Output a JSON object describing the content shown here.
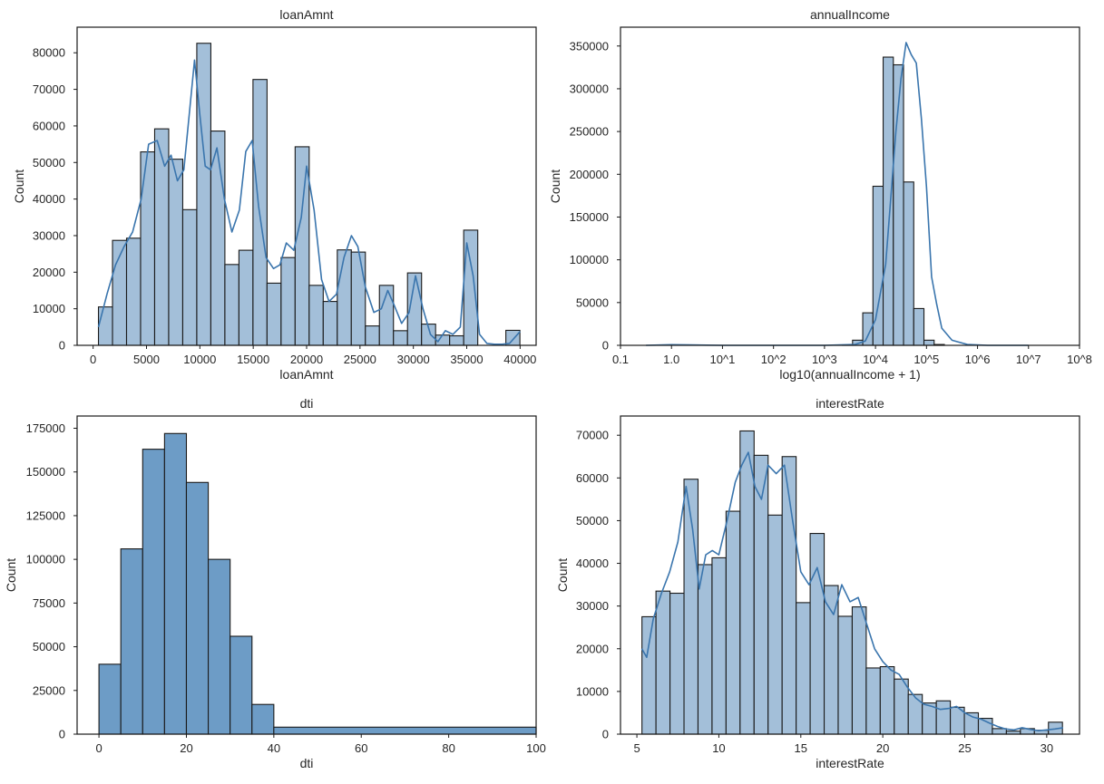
{
  "figure": {
    "style": {
      "bar_color_light": "#a3bfd9",
      "bar_color_dark": "#6d9cc6",
      "kde_color": "#3a75ad",
      "edge_color": "#1a1a1a"
    }
  },
  "chart_data": [
    {
      "type": "bar",
      "subtype": "histogram",
      "title": "loanAmnt",
      "xlabel": "loanAmnt",
      "ylabel": "Count",
      "xlim": [
        -1500,
        41500
      ],
      "ylim": [
        0,
        87000
      ],
      "xticks": [
        0,
        5000,
        10000,
        15000,
        20000,
        25000,
        30000,
        35000,
        40000
      ],
      "xtick_labels": [
        "0",
        "5000",
        "10000",
        "15000",
        "20000",
        "25000",
        "30000",
        "35000",
        "40000"
      ],
      "yticks": [
        0,
        10000,
        20000,
        30000,
        40000,
        50000,
        60000,
        70000,
        80000
      ],
      "ytick_labels": [
        "0",
        "10000",
        "20000",
        "30000",
        "40000",
        "50000",
        "60000",
        "70000",
        "80000"
      ],
      "bin_start": 500,
      "bin_width": 1316,
      "values": [
        10500,
        28700,
        29300,
        52900,
        59200,
        50900,
        37100,
        82600,
        58600,
        22100,
        26000,
        72700,
        17000,
        24000,
        54300,
        16400,
        12000,
        26100,
        25500,
        5300,
        16400,
        4000,
        19800,
        5800,
        2800,
        2600,
        31500,
        0,
        0,
        4100
      ],
      "kde": {
        "x": [
          500,
          1300,
          2100,
          2900,
          3700,
          4500,
          5200,
          6000,
          6700,
          7300,
          7900,
          8500,
          9000,
          9500,
          10000,
          10500,
          11000,
          11600,
          12300,
          13000,
          13700,
          14300,
          14900,
          15500,
          16200,
          16900,
          17500,
          18100,
          18800,
          19500,
          20000,
          20700,
          21400,
          22100,
          22800,
          23500,
          24200,
          24800,
          25500,
          26300,
          27000,
          27600,
          28200,
          28900,
          29600,
          30200,
          30900,
          31600,
          32300,
          33000,
          33700,
          34400,
          35000,
          35600,
          36200,
          36900,
          37600,
          38300,
          39000,
          40000
        ],
        "y": [
          5000,
          14000,
          22000,
          27000,
          31000,
          40000,
          55000,
          56000,
          49000,
          52000,
          45000,
          48000,
          63000,
          78000,
          63000,
          49000,
          48000,
          54000,
          40000,
          31000,
          37000,
          53000,
          56000,
          38000,
          24000,
          21000,
          22000,
          28000,
          26000,
          35000,
          49000,
          37000,
          18000,
          12000,
          14000,
          24000,
          30000,
          27000,
          16000,
          9000,
          10000,
          15000,
          11000,
          6000,
          9000,
          19000,
          10000,
          3000,
          1000,
          4000,
          3000,
          5000,
          28000,
          19000,
          3000,
          500,
          300,
          300,
          500,
          3800
        ]
      }
    },
    {
      "type": "bar",
      "subtype": "histogram",
      "title": "annualIncome",
      "xlabel": "log10(annualIncome + 1)",
      "ylabel": "Count",
      "xlim": [
        -1,
        8
      ],
      "ylim": [
        0,
        372000
      ],
      "xticks": [
        -1,
        0,
        1,
        2,
        3,
        4,
        5,
        6,
        7,
        8
      ],
      "xtick_labels": [
        "0.1",
        "1.0",
        "10^1",
        "10^2",
        "10^3",
        "10^4",
        "10^5",
        "10^6",
        "10^7",
        "10^8"
      ],
      "yticks": [
        0,
        50000,
        100000,
        150000,
        200000,
        250000,
        300000,
        350000
      ],
      "ytick_labels": [
        "0",
        "50000",
        "100000",
        "150000",
        "200000",
        "250000",
        "300000",
        "350000"
      ],
      "bin_start": 3.35,
      "bin_width": 0.2,
      "values": [
        500,
        6000,
        38000,
        186000,
        337000,
        328000,
        191000,
        43000,
        6000,
        1000
      ],
      "kde": {
        "x": [
          -0.5,
          0.0,
          1.0,
          2.0,
          3.0,
          3.6,
          3.8,
          4.0,
          4.2,
          4.4,
          4.5,
          4.6,
          4.7,
          4.8,
          4.9,
          5.0,
          5.1,
          5.2,
          5.3,
          5.5,
          5.8,
          6.2,
          7.0
        ],
        "y": [
          0,
          700,
          0,
          0,
          0,
          1000,
          5000,
          30000,
          95000,
          250000,
          312000,
          354000,
          340000,
          330000,
          265000,
          185000,
          80000,
          48000,
          20000,
          6000,
          1000,
          0,
          0
        ]
      }
    },
    {
      "type": "bar",
      "subtype": "histogram",
      "title": "dti",
      "xlabel": "dti",
      "ylabel": "Count",
      "xlim": [
        -5,
        100
      ],
      "ylim": [
        0,
        182000
      ],
      "xticks": [
        0,
        20,
        40,
        60,
        80,
        100
      ],
      "xtick_labels": [
        "0",
        "20",
        "40",
        "60",
        "80",
        "100"
      ],
      "yticks": [
        0,
        25000,
        50000,
        75000,
        100000,
        125000,
        150000,
        175000
      ],
      "ytick_labels": [
        "0",
        "25000",
        "50000",
        "75000",
        "100000",
        "125000",
        "150000",
        "175000"
      ],
      "bin_edges": [
        0,
        5,
        10,
        15,
        20,
        25,
        30,
        35,
        40,
        100
      ],
      "values": [
        40000,
        106000,
        163000,
        172000,
        144000,
        100000,
        56000,
        17000,
        4000
      ]
    },
    {
      "type": "bar",
      "subtype": "histogram",
      "title": "interestRate",
      "xlabel": "interestRate",
      "ylabel": "Count",
      "xlim": [
        4.0,
        32.0
      ],
      "ylim": [
        0,
        74500
      ],
      "xticks": [
        5,
        10,
        15,
        20,
        25,
        30
      ],
      "xtick_labels": [
        "5",
        "10",
        "15",
        "20",
        "25",
        "30"
      ],
      "yticks": [
        0,
        10000,
        20000,
        30000,
        40000,
        50000,
        60000,
        70000
      ],
      "ytick_labels": [
        "0",
        "10000",
        "20000",
        "30000",
        "40000",
        "50000",
        "60000",
        "70000"
      ],
      "bin_start": 5.31,
      "bin_width": 0.855,
      "values": [
        27500,
        33500,
        33000,
        59700,
        39700,
        41300,
        52200,
        71000,
        65300,
        51300,
        65000,
        30800,
        47000,
        34800,
        27600,
        29800,
        15500,
        15800,
        12900,
        9300,
        7300,
        7800,
        6300,
        5000,
        3700,
        1300,
        700,
        1300,
        900,
        2800
      ],
      "kde": {
        "x": [
          5.3,
          5.6,
          6.0,
          6.5,
          7.0,
          7.5,
          8.0,
          8.4,
          8.8,
          9.2,
          9.6,
          10.0,
          10.5,
          11.0,
          11.4,
          11.8,
          12.2,
          12.6,
          13.0,
          13.5,
          14.0,
          14.5,
          15.0,
          15.5,
          16.0,
          16.5,
          17.0,
          17.5,
          18.0,
          18.5,
          19.0,
          19.5,
          20.0,
          20.5,
          21.0,
          21.5,
          22.0,
          22.5,
          23.0,
          23.5,
          24.0,
          24.5,
          25.0,
          25.5,
          26.0,
          26.5,
          27.0,
          27.5,
          28.0,
          28.5,
          29.0,
          29.5,
          30.0,
          30.5,
          31.0
        ],
        "y": [
          20000,
          18000,
          27000,
          33000,
          38000,
          45000,
          58000,
          48000,
          34000,
          42000,
          43000,
          42000,
          50000,
          59000,
          63000,
          66000,
          58000,
          55000,
          63000,
          61000,
          63000,
          50000,
          38000,
          35000,
          39000,
          31000,
          28000,
          35000,
          31000,
          32000,
          26000,
          20000,
          17000,
          15000,
          14000,
          11000,
          8500,
          7000,
          6500,
          5800,
          6000,
          6500,
          5000,
          4000,
          3500,
          2600,
          1800,
          1200,
          1000,
          1500,
          1100,
          800,
          1000,
          1200,
          1500
        ]
      }
    }
  ]
}
